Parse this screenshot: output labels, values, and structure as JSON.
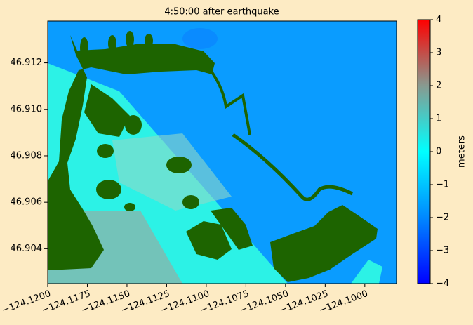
{
  "chart_data": {
    "type": "image",
    "title": "4:50:00 after earthquake",
    "xlim": [
      -124.12,
      -124.098
    ],
    "xticks": [
      {
        "value": -124.12,
        "label": "−124.1200"
      },
      {
        "value": -124.1175,
        "label": "−124.1175"
      },
      {
        "value": -124.115,
        "label": "−124.1150"
      },
      {
        "value": -124.1125,
        "label": "−124.1125"
      },
      {
        "value": -124.11,
        "label": "−124.1100"
      },
      {
        "value": -124.1075,
        "label": "−124.1075"
      },
      {
        "value": -124.105,
        "label": "−124.1050"
      },
      {
        "value": -124.1025,
        "label": "−124.1025"
      },
      {
        "value": -124.1,
        "label": "−124.1000"
      }
    ],
    "ylim": [
      46.9025,
      46.9138
    ],
    "yticks": [
      46.904,
      46.906,
      46.908,
      {
        "value": 46.91,
        "label": "46.910"
      },
      46.912
    ],
    "colorbar": {
      "label": "meters",
      "lim": [
        -4,
        4
      ],
      "ticks": [
        {
          "value": -4,
          "label": "−4"
        },
        {
          "value": -3,
          "label": "−3"
        },
        {
          "value": -2,
          "label": "−2"
        },
        {
          "value": -1,
          "label": "−1"
        },
        0,
        1,
        2,
        3,
        4
      ],
      "colormap": [
        "#0000ff",
        "#0088ff",
        "#00ffff",
        "#889a90",
        "#ff0000"
      ]
    },
    "land_color": "#1d6400"
  }
}
